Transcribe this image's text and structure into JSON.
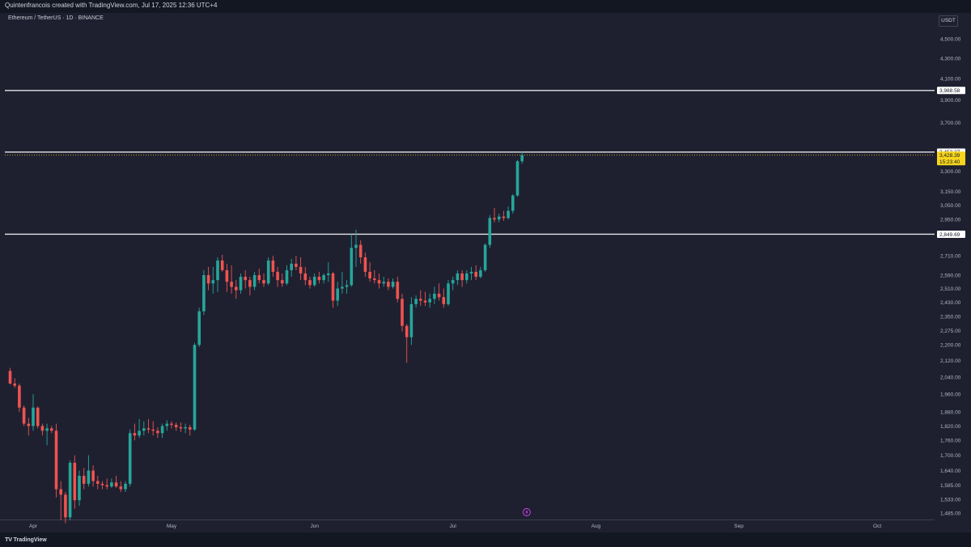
{
  "header": {
    "caption": "Quintenfrancois created with TradingView.com, Jul 17, 2025 12:36 UTC+4"
  },
  "chart": {
    "symbol": "Ethereum / TetherUS · 1D · BINANCE",
    "currency": "USDT"
  },
  "footer": {
    "brand": "TradingView"
  },
  "colors": {
    "background": "#1e2030",
    "up": "#26a69a",
    "down": "#ef5350",
    "level_line": "#e6e6e6",
    "current_price_badge": "#f7d51d"
  },
  "icons": {
    "logo": "tradingview-logo-icon",
    "event_marker": "lightning-event-icon"
  },
  "chart_data": {
    "type": "candlestick",
    "title": "Ethereum / TetherUS · 1D · BINANCE",
    "y_axis": {
      "ticks": [
        "4,500.00",
        "4,300.00",
        "4,100.00",
        "3,900.00",
        "3,700.00",
        "3,450.00",
        "3,300.00",
        "3,150.00",
        "3,050.00",
        "2,950.00",
        "2,850.00",
        "2,710.00",
        "2,590.00",
        "2,510.00",
        "2,430.00",
        "2,350.00",
        "2,275.00",
        "2,200.00",
        "2,120.00",
        "2,040.00",
        "1,960.00",
        "1,880.00",
        "1,820.00",
        "1,760.00",
        "1,700.00",
        "1,640.00",
        "1,585.00",
        "1,533.00",
        "1,485.00"
      ],
      "scale": "log",
      "position": "right"
    },
    "x_axis": {
      "ticks": [
        "Apr",
        "May",
        "Jun",
        "Jul",
        "Aug",
        "Sep",
        "Oct"
      ]
    },
    "horizontal_levels": [
      {
        "value": 3988.58,
        "label": "3,988.58"
      },
      {
        "value": 3453.27,
        "label": "3,453.27"
      },
      {
        "value": 2849.69,
        "label": "2,849.69"
      }
    ],
    "current_price": {
      "value": 3428.39,
      "label": "3,428.39",
      "countdown": "15:23:40"
    },
    "event_marker_date": "2025-07-17",
    "candles_start_date": "2025-03-27",
    "candles": [
      [
        2070,
        2085,
        2005,
        2010
      ],
      [
        2010,
        2035,
        1990,
        2000
      ],
      [
        2000,
        2010,
        1880,
        1900
      ],
      [
        1900,
        1910,
        1820,
        1830
      ],
      [
        1830,
        1855,
        1780,
        1820
      ],
      [
        1820,
        1960,
        1800,
        1900
      ],
      [
        1900,
        1905,
        1810,
        1820
      ],
      [
        1820,
        1830,
        1780,
        1800
      ],
      [
        1800,
        1830,
        1740,
        1810
      ],
      [
        1810,
        1820,
        1790,
        1800
      ],
      [
        1800,
        1830,
        1540,
        1570
      ],
      [
        1570,
        1600,
        1460,
        1550
      ],
      [
        1550,
        1560,
        1450,
        1470
      ],
      [
        1470,
        1680,
        1460,
        1670
      ],
      [
        1670,
        1700,
        1500,
        1530
      ],
      [
        1530,
        1640,
        1510,
        1620
      ],
      [
        1620,
        1650,
        1570,
        1590
      ],
      [
        1590,
        1700,
        1580,
        1640
      ],
      [
        1640,
        1660,
        1580,
        1600
      ],
      [
        1600,
        1620,
        1570,
        1590
      ],
      [
        1590,
        1600,
        1570,
        1585
      ],
      [
        1585,
        1610,
        1570,
        1580
      ],
      [
        1580,
        1610,
        1575,
        1595
      ],
      [
        1595,
        1620,
        1575,
        1580
      ],
      [
        1580,
        1600,
        1560,
        1570
      ],
      [
        1570,
        1600,
        1560,
        1590
      ],
      [
        1590,
        1805,
        1580,
        1790
      ],
      [
        1790,
        1830,
        1760,
        1780
      ],
      [
        1780,
        1850,
        1770,
        1800
      ],
      [
        1800,
        1840,
        1780,
        1810
      ],
      [
        1810,
        1850,
        1790,
        1805
      ],
      [
        1805,
        1840,
        1780,
        1800
      ],
      [
        1800,
        1815,
        1770,
        1790
      ],
      [
        1790,
        1830,
        1770,
        1820
      ],
      [
        1820,
        1845,
        1800,
        1830
      ],
      [
        1830,
        1840,
        1810,
        1825
      ],
      [
        1825,
        1835,
        1800,
        1815
      ],
      [
        1815,
        1835,
        1795,
        1810
      ],
      [
        1810,
        1830,
        1790,
        1815
      ],
      [
        1815,
        1825,
        1780,
        1805
      ],
      [
        1805,
        2210,
        1800,
        2200
      ],
      [
        2200,
        2400,
        2190,
        2380
      ],
      [
        2380,
        2620,
        2360,
        2590
      ],
      [
        2590,
        2640,
        2500,
        2540
      ],
      [
        2540,
        2640,
        2480,
        2560
      ],
      [
        2560,
        2700,
        2490,
        2680
      ],
      [
        2680,
        2715,
        2610,
        2620
      ],
      [
        2620,
        2660,
        2490,
        2550
      ],
      [
        2550,
        2650,
        2480,
        2520
      ],
      [
        2520,
        2560,
        2450,
        2500
      ],
      [
        2500,
        2600,
        2480,
        2580
      ],
      [
        2580,
        2620,
        2510,
        2560
      ],
      [
        2560,
        2580,
        2470,
        2520
      ],
      [
        2520,
        2610,
        2500,
        2590
      ],
      [
        2590,
        2630,
        2540,
        2560
      ],
      [
        2560,
        2600,
        2520,
        2540
      ],
      [
        2540,
        2700,
        2530,
        2680
      ],
      [
        2680,
        2710,
        2580,
        2610
      ],
      [
        2610,
        2640,
        2520,
        2560
      ],
      [
        2560,
        2600,
        2520,
        2540
      ],
      [
        2540,
        2650,
        2530,
        2620
      ],
      [
        2620,
        2690,
        2580,
        2660
      ],
      [
        2660,
        2710,
        2620,
        2640
      ],
      [
        2640,
        2700,
        2560,
        2600
      ],
      [
        2600,
        2640,
        2530,
        2560
      ],
      [
        2560,
        2580,
        2510,
        2530
      ],
      [
        2530,
        2600,
        2520,
        2580
      ],
      [
        2580,
        2610,
        2540,
        2560
      ],
      [
        2560,
        2600,
        2540,
        2590
      ],
      [
        2590,
        2670,
        2550,
        2600
      ],
      [
        2600,
        2610,
        2400,
        2440
      ],
      [
        2440,
        2550,
        2410,
        2510
      ],
      [
        2510,
        2610,
        2480,
        2520
      ],
      [
        2520,
        2560,
        2480,
        2530
      ],
      [
        2530,
        2850,
        2520,
        2760
      ],
      [
        2760,
        2880,
        2640,
        2780
      ],
      [
        2780,
        2810,
        2660,
        2700
      ],
      [
        2700,
        2730,
        2580,
        2610
      ],
      [
        2610,
        2670,
        2550,
        2570
      ],
      [
        2570,
        2620,
        2540,
        2560
      ],
      [
        2560,
        2600,
        2510,
        2540
      ],
      [
        2540,
        2580,
        2520,
        2550
      ],
      [
        2550,
        2570,
        2500,
        2520
      ],
      [
        2520,
        2570,
        2510,
        2550
      ],
      [
        2550,
        2580,
        2430,
        2450
      ],
      [
        2450,
        2480,
        2270,
        2300
      ],
      [
        2300,
        2310,
        2110,
        2240
      ],
      [
        2240,
        2460,
        2200,
        2420
      ],
      [
        2420,
        2470,
        2400,
        2450
      ],
      [
        2450,
        2500,
        2410,
        2440
      ],
      [
        2440,
        2490,
        2410,
        2430
      ],
      [
        2430,
        2480,
        2400,
        2450
      ],
      [
        2450,
        2520,
        2420,
        2480
      ],
      [
        2480,
        2540,
        2440,
        2460
      ],
      [
        2460,
        2510,
        2400,
        2420
      ],
      [
        2420,
        2560,
        2410,
        2540
      ],
      [
        2540,
        2580,
        2500,
        2560
      ],
      [
        2560,
        2620,
        2530,
        2600
      ],
      [
        2600,
        2620,
        2520,
        2560
      ],
      [
        2560,
        2620,
        2540,
        2600
      ],
      [
        2600,
        2640,
        2560,
        2610
      ],
      [
        2610,
        2650,
        2560,
        2580
      ],
      [
        2580,
        2640,
        2570,
        2620
      ],
      [
        2620,
        2790,
        2610,
        2780
      ],
      [
        2780,
        2980,
        2760,
        2960
      ],
      [
        2960,
        3030,
        2930,
        2950
      ],
      [
        2950,
        2990,
        2930,
        2970
      ],
      [
        2970,
        3010,
        2940,
        2960
      ],
      [
        2960,
        3040,
        2950,
        3010
      ],
      [
        3010,
        3130,
        2990,
        3120
      ],
      [
        3120,
        3390,
        3110,
        3380
      ],
      [
        3380,
        3460,
        3360,
        3428.39
      ]
    ]
  }
}
